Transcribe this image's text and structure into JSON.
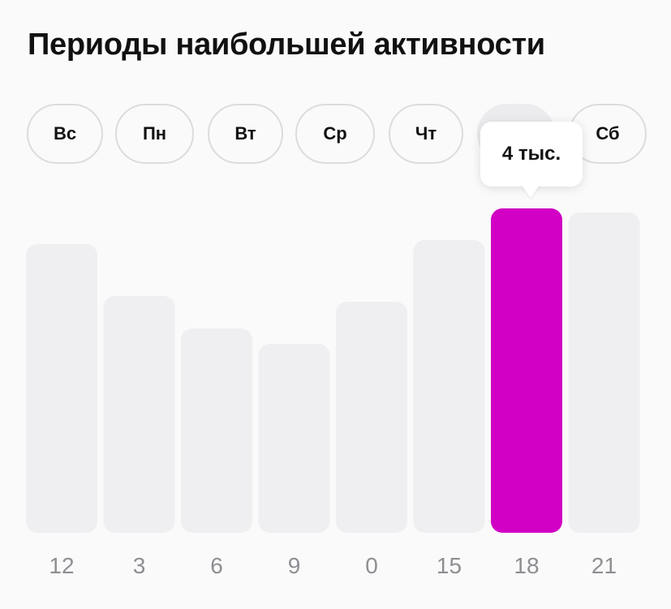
{
  "header": {
    "title": "Периоды наибольшей активности"
  },
  "days": [
    {
      "label": "Вс",
      "selected": false
    },
    {
      "label": "Пн",
      "selected": false
    },
    {
      "label": "Вт",
      "selected": false
    },
    {
      "label": "Ср",
      "selected": false
    },
    {
      "label": "Чт",
      "selected": false
    },
    {
      "label": "",
      "selected": true
    },
    {
      "label": "Сб",
      "selected": false
    }
  ],
  "tooltip": {
    "text": "4 тыс."
  },
  "colors": {
    "highlight_bar": "#d100c4",
    "bar": "#efeff1",
    "tick_text": "#8e8e93"
  },
  "chart_data": {
    "type": "bar",
    "categories": [
      "12",
      "3",
      "6",
      "9",
      "0",
      "15",
      "18",
      "21"
    ],
    "values": [
      3.56,
      2.92,
      2.52,
      2.33,
      2.85,
      3.61,
      4.0,
      3.95
    ],
    "highlighted_index": 6,
    "title": "Периоды наибольшей активности",
    "xlabel": "",
    "ylabel": "",
    "ylim": [
      0,
      4.0
    ],
    "grid": false,
    "legend": "none"
  }
}
